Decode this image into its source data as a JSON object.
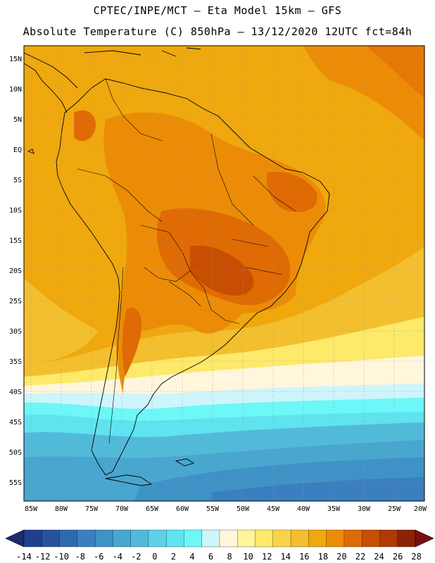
{
  "header": {
    "line1": "CPTEC/INPE/MCT –  Eta Model 15km – GFS",
    "line2": "Absolute Temperature (C) 850hPa – 13/12/2020 12UTC fct=84h"
  },
  "axes": {
    "lat_labels": [
      "15N",
      "10N",
      "5N",
      "EQ",
      "5S",
      "10S",
      "15S",
      "20S",
      "25S",
      "30S",
      "35S",
      "40S",
      "45S",
      "50S",
      "55S"
    ],
    "lon_labels": [
      "85W",
      "80W",
      "75W",
      "70W",
      "65W",
      "60W",
      "55W",
      "50W",
      "45W",
      "40W",
      "35W",
      "30W",
      "25W",
      "20W"
    ]
  },
  "colorbar": {
    "labels": [
      "-14",
      "-12",
      "-10",
      "-8",
      "-6",
      "-4",
      "-2",
      "0",
      "2",
      "4",
      "6",
      "8",
      "10",
      "12",
      "14",
      "16",
      "18",
      "20",
      "22",
      "24",
      "26",
      "28"
    ],
    "colors": [
      "#1f3f8f",
      "#27539d",
      "#2f6aae",
      "#3a7fbf",
      "#3f92c5",
      "#48a6cf",
      "#52bad9",
      "#5fd0e6",
      "#5fe4ef",
      "#6df7f7",
      "#cdf5fb",
      "#fff6dc",
      "#fff59a",
      "#fde96a",
      "#f8d44a",
      "#f3bf2e",
      "#efa80e",
      "#ec8c06",
      "#e06a03",
      "#c84e02",
      "#b03a03",
      "#8c2206"
    ],
    "left_arrow_color": "#1f2a6f",
    "right_arrow_color": "#7a1010"
  }
}
